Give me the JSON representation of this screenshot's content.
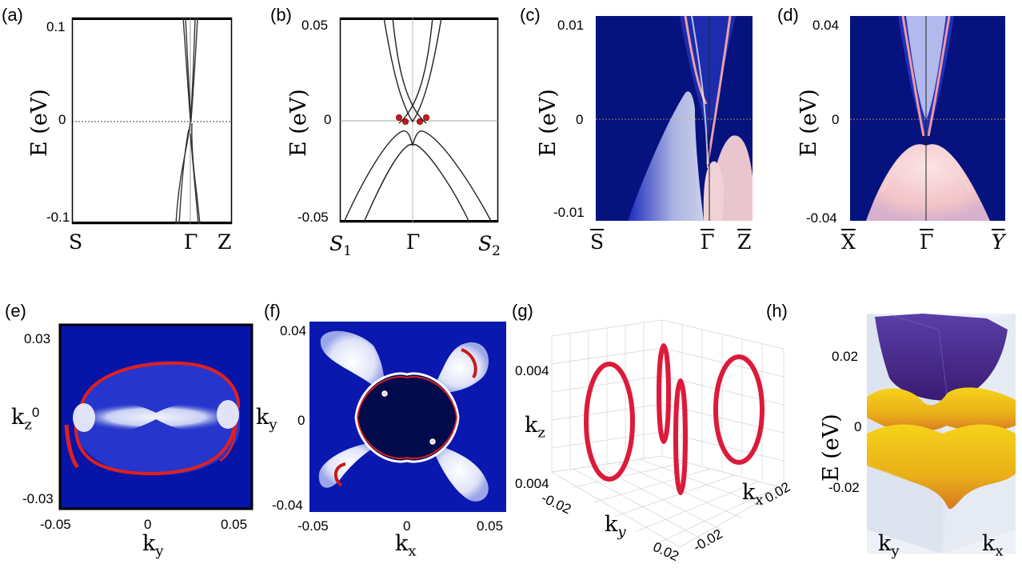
{
  "panels": {
    "a": {
      "label": "(a)",
      "ylabel": "E (eV)",
      "yticks": [
        "0.1",
        "0",
        "-0.1"
      ],
      "xticks": [
        "S",
        "Γ",
        "Z"
      ]
    },
    "b": {
      "label": "(b)",
      "ylabel": "E (eV)",
      "yticks": [
        "0.05",
        "0",
        "-0.05"
      ],
      "xticks": [
        "S",
        "1",
        "Γ",
        "S",
        "2"
      ]
    },
    "c": {
      "label": "(c)",
      "ylabel": "E (eV)",
      "yticks": [
        "0.01",
        "0",
        "-0.01"
      ],
      "xticks": [
        "S",
        "Γ",
        "Z"
      ]
    },
    "d": {
      "label": "(d)",
      "ylabel": "E (eV)",
      "yticks": [
        "0.04",
        "0",
        "-0.04"
      ],
      "xticks": [
        "X",
        "Γ",
        "Y"
      ]
    },
    "e": {
      "label": "(e)",
      "ylabel": "k",
      "ylabel_sub": "z",
      "yticks": [
        "0.03",
        "0",
        "-0.03"
      ],
      "xticks": [
        "-0.05",
        "0",
        "0.05"
      ],
      "xlabel": "k",
      "xlabel_sub": "y"
    },
    "f": {
      "label": "(f)",
      "ylabel": "k",
      "ylabel_sub": "y",
      "yticks": [
        "0.04",
        "0",
        "-0.04"
      ],
      "xticks": [
        "-0.05",
        "0",
        "0.05"
      ],
      "xlabel": "k",
      "xlabel_sub": "x"
    },
    "g": {
      "label": "(g)",
      "zlabel": "k",
      "zlabel_sub": "z",
      "zticks": [
        "0.004",
        "0.004"
      ],
      "ky_ticks": [
        "-0.02",
        "0.02"
      ],
      "kx_ticks": [
        "-0.02",
        "0.02"
      ],
      "ky_label": "k",
      "ky_sub": "y",
      "kx_label": "k",
      "kx_sub": "x"
    },
    "h": {
      "label": "(h)",
      "ylabel": "E (eV)",
      "yticks": [
        "0.02",
        "0",
        "-0.02"
      ],
      "xlabel_left": "k",
      "xlabel_left_sub": "y",
      "xlabel_right": "k",
      "xlabel_right_sub": "x"
    }
  },
  "colors": {
    "deep_blue": "#06127e",
    "surface_red": "#e0201e",
    "node_red": "#c81a1a",
    "surface_purple": "#4a2a8c",
    "surface_yellow": "#f2c300"
  }
}
